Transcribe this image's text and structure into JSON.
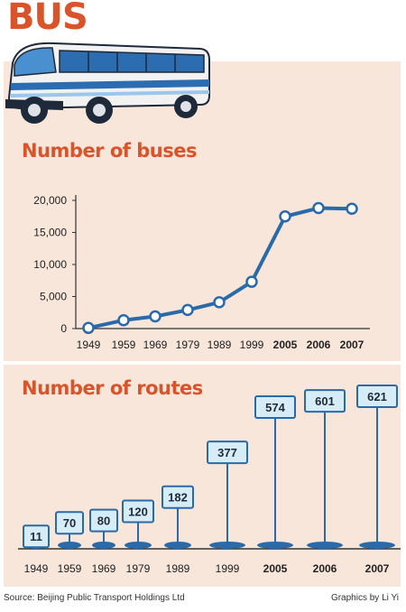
{
  "header": {
    "title": "BUS"
  },
  "footer": {
    "source": "Source: Beijing Public Transport Holdings Ltd",
    "credit": "Graphics by Li Yi"
  },
  "colors": {
    "accent": "#d9542a",
    "line": "#2a6aa8",
    "panel": "#f8e6da",
    "sign_fill": "#d6ecf6"
  },
  "chart_data": [
    {
      "type": "line",
      "title": "Number of buses",
      "x": [
        "1949",
        "1959",
        "1969",
        "1979",
        "1989",
        "1999",
        "2005",
        "2006",
        "2007"
      ],
      "values": [
        100,
        1300,
        1900,
        2900,
        4100,
        7300,
        17500,
        18800,
        18700
      ],
      "yticks": [
        "20,000",
        "15,000",
        "10,000",
        "5,000",
        "0"
      ],
      "ylim": [
        0,
        20000
      ],
      "grid": false
    },
    {
      "type": "bar",
      "title": "Number of routes",
      "categories": [
        "1949",
        "1959",
        "1969",
        "1979",
        "1989",
        "1999",
        "2005",
        "2006",
        "2007"
      ],
      "values": [
        11,
        70,
        80,
        120,
        182,
        377,
        574,
        601,
        621
      ],
      "labels": [
        "11",
        "70",
        "80",
        "120",
        "182",
        "377",
        "574",
        "601",
        "621"
      ]
    }
  ]
}
